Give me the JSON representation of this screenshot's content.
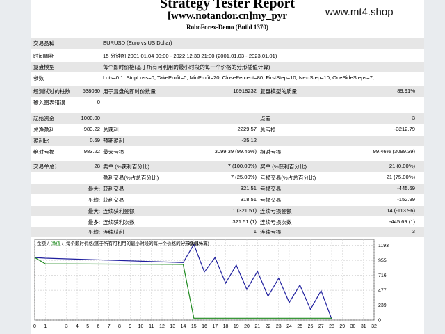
{
  "header": {
    "title": "Strategy Tester Report",
    "subtitle": "[www.notandor.cn]my_pyr",
    "build": "RoboForex-Demo (Build 1370)",
    "watermark": "www.mt4.shop"
  },
  "info": {
    "symbol_label": "交易品种",
    "symbol_value": "EURUSD (Euro vs US Dollar)",
    "period_label": "时间周期",
    "period_value": "15 分钟图 2001.01.04 00:00 - 2022.12.30 21:00 (2001.01.03 - 2023.01.01)",
    "model_label": "复盘模型",
    "model_value": "每个即时价格(基于所有可利用的最小时段的每一个价格的分形插值计算)",
    "params_label": "参数",
    "params_value": "Lots=0.1; StopLoss=0; TakeProfit=0; MinProfit=20; ClosePercent=80; FirstStep=10; NextStep=10; OneSideSteps=7;",
    "bars_label": "经测试过的柱数",
    "bars_value": "538090",
    "ticks_label": "用于复盘的即时价数量",
    "ticks_value": "16918232",
    "quality_label": "复盘模型的质量",
    "quality_value": "89.91%",
    "mismatch_label": "输入图表错误",
    "mismatch_value": "0"
  },
  "stats": {
    "deposit_label": "起始资金",
    "deposit_value": "1000.00",
    "spread_label": "点差",
    "spread_value": "3",
    "netprofit_label": "总净盈利",
    "netprofit_value": "-983.22",
    "grossprofit_label": "总获利",
    "grossprofit_value": "2229.57",
    "grossloss_label": "总亏损",
    "grossloss_value": "-3212.79",
    "pf_label": "盈利比",
    "pf_value": "0.69",
    "expected_label": "预期盈利",
    "expected_value": "-35.12",
    "absdd_label": "绝对亏损",
    "absdd_value": "983.22",
    "maxdd_label": "最大亏损",
    "maxdd_value": "3099.39 (99.46%)",
    "reldd_label": "相对亏损",
    "reldd_value": "99.46% (3099.39)",
    "total_label": "交易单总计",
    "total_value": "28",
    "short_label": "卖单 (%获利百分比)",
    "short_value": "7 (100.00%)",
    "long_label": "买单 (%获利百分比)",
    "long_value": "21 (0.00%)",
    "profittr_label": "盈利交易(%占总百分比)",
    "profittr_value": "7 (25.00%)",
    "losstr_label": "亏损交易(%占总百分比)",
    "losstr_value": "21 (75.00%)",
    "largest_label": "最大:",
    "lprofit_label": "获利交易",
    "lprofit_value": "321.51",
    "lloss_label": "亏损交易",
    "lloss_value": "-445.69",
    "average_label": "平均:",
    "aprofit_label": "获利交易",
    "aprofit_value": "318.51",
    "aloss_label": "亏损交易",
    "aloss_value": "-152.99",
    "maxcons_label": "最大:",
    "mcwins_label": "连续获利金额",
    "mcwins_value": "1 (321.51)",
    "mclosses_label": "连续亏损金额",
    "mclosses_value": "14 (-113.96)",
    "maxcons2_label": "最多:",
    "mcprofit_label": "连续获利次数",
    "mcprofit_value": "321.51 (1)",
    "mcloss_label": "连续亏损次数",
    "mcloss_value": "-445.69 (1)",
    "avgcons_label": "平均:",
    "acwins_label": "连续获利",
    "acwins_value": "1",
    "aclosses_label": "连续亏损",
    "aclosses_value": "3"
  },
  "chart_data": {
    "type": "line",
    "legend": [
      "余额",
      "净值",
      "每个即时价格(基于所有可利用的最小时段的每一个价格的分形插值计算)",
      "89.91%"
    ],
    "x_ticks": [
      0,
      1,
      3,
      4,
      5,
      6,
      7,
      8,
      9,
      10,
      11,
      12,
      13,
      14,
      15,
      16,
      17,
      18,
      19,
      20,
      21,
      22,
      23,
      24,
      25,
      26,
      27,
      28,
      29,
      30,
      31,
      32
    ],
    "y_ticks": [
      0,
      239,
      477,
      716,
      955,
      1193
    ],
    "xlim": [
      0,
      32
    ],
    "ylim": [
      0,
      1290
    ],
    "series": [
      {
        "name": "余额",
        "color": "#1f1f9e",
        "points": [
          [
            0,
            1000
          ],
          [
            1,
            990
          ],
          [
            14,
            920
          ],
          [
            15,
            1210
          ],
          [
            16,
            770
          ],
          [
            17,
            1000
          ],
          [
            18,
            590
          ],
          [
            19,
            880
          ],
          [
            20,
            490
          ],
          [
            21,
            780
          ],
          [
            22,
            380
          ],
          [
            23,
            670
          ],
          [
            24,
            280
          ],
          [
            25,
            560
          ],
          [
            26,
            170
          ],
          [
            27,
            470
          ],
          [
            28,
            17
          ]
        ]
      },
      {
        "name": "净值",
        "color": "#1f8a1f",
        "points": [
          [
            0,
            1000
          ],
          [
            1,
            900
          ],
          [
            14,
            890
          ],
          [
            15,
            30
          ],
          [
            16,
            30
          ],
          [
            28,
            30
          ]
        ]
      }
    ]
  },
  "colors": {
    "balance": "#1f1f9e",
    "equity": "#1f8a1f",
    "row_grey": "#e6e6e6"
  }
}
